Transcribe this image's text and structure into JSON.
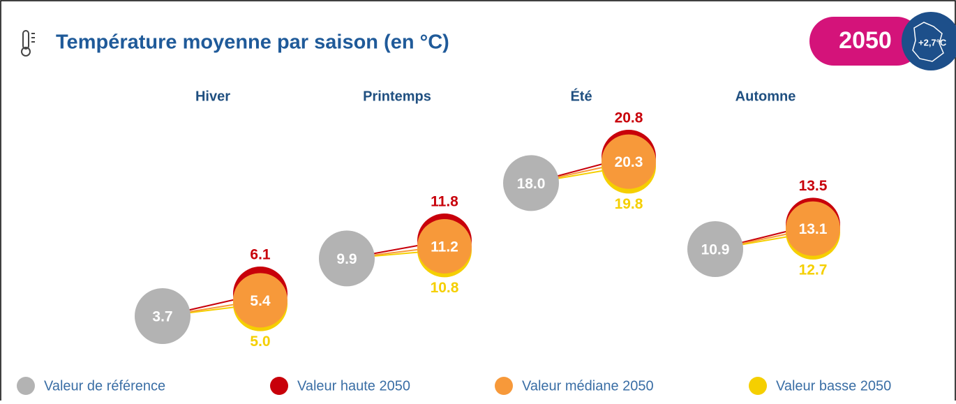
{
  "chart_data": {
    "type": "dumbbell",
    "title": "Température moyenne par saison (en °C)",
    "badge": "2050",
    "badge_note": "+2,7°C",
    "categories": [
      "Hiver",
      "Printemps",
      "Été",
      "Automne"
    ],
    "series": [
      {
        "name": "Valeur de référence",
        "color": "#b3b3b3",
        "values": [
          3.7,
          9.9,
          18.0,
          10.9
        ],
        "value_labels": [
          "3.7",
          "9.9",
          "18.0",
          "10.9"
        ]
      },
      {
        "name": "Valeur haute 2050",
        "color": "#c8000a",
        "values": [
          6.1,
          11.8,
          20.8,
          13.5
        ],
        "value_labels": [
          "6.1",
          "11.8",
          "20.8",
          "13.5"
        ]
      },
      {
        "name": "Valeur médiane 2050",
        "color": "#f7993a",
        "values": [
          5.4,
          11.2,
          20.3,
          13.1
        ],
        "value_labels": [
          "5.4",
          "11.2",
          "20.3",
          "13.1"
        ]
      },
      {
        "name": "Valeur basse 2050",
        "color": "#f5cf00",
        "values": [
          5.0,
          10.8,
          19.8,
          12.7
        ],
        "value_labels": [
          "5.0",
          "10.8",
          "19.8",
          "12.7"
        ]
      }
    ]
  }
}
